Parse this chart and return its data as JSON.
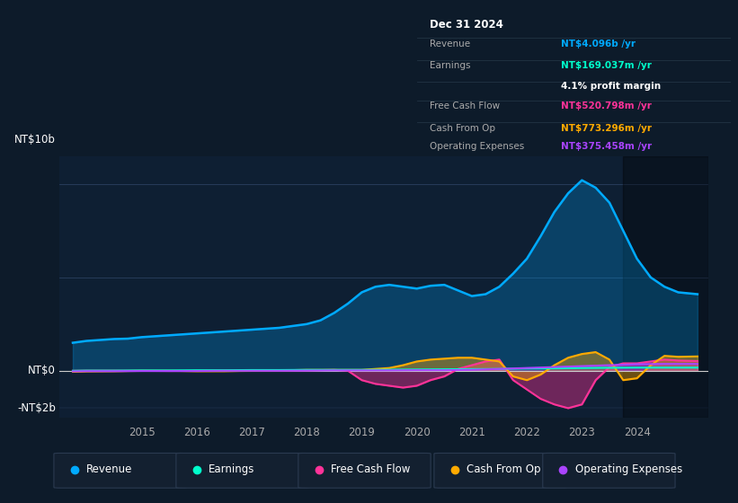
{
  "bg_color": "#0d1b2a",
  "plot_bg_color": "#0e1f33",
  "grid_color": "#1e3a52",
  "ylabel_top": "NT$10b",
  "ylabel_zero": "NT$0",
  "ylabel_neg": "-NT$2b",
  "ylim": [
    -2500000000.0,
    11500000000.0
  ],
  "xmin": 2013.5,
  "xmax": 2025.3,
  "xticks": [
    2015,
    2016,
    2017,
    2018,
    2019,
    2020,
    2021,
    2022,
    2023,
    2024
  ],
  "revenue_color": "#00aaff",
  "earnings_color": "#00ffcc",
  "fcf_color": "#ff3399",
  "cashfromop_color": "#ffaa00",
  "opex_color": "#aa44ff",
  "legend_items": [
    {
      "label": "Revenue",
      "color": "#00aaff"
    },
    {
      "label": "Earnings",
      "color": "#00ffcc"
    },
    {
      "label": "Free Cash Flow",
      "color": "#ff3399"
    },
    {
      "label": "Cash From Op",
      "color": "#ffaa00"
    },
    {
      "label": "Operating Expenses",
      "color": "#aa44ff"
    }
  ],
  "info_box": {
    "date": "Dec 31 2024",
    "revenue_label": "Revenue",
    "revenue_value": "NT$4.096b",
    "revenue_color": "#00aaff",
    "earnings_label": "Earnings",
    "earnings_value": "NT$169.037m",
    "earnings_color": "#00ffcc",
    "margin_text": "4.1% profit margin",
    "fcf_label": "Free Cash Flow",
    "fcf_value": "NT$520.798m",
    "fcf_color": "#ff3399",
    "cashop_label": "Cash From Op",
    "cashop_value": "NT$773.296m",
    "cashop_color": "#ffaa00",
    "opex_label": "Operating Expenses",
    "opex_value": "NT$375.458m",
    "opex_color": "#aa44ff"
  },
  "revenue_x": [
    2013.75,
    2014.0,
    2014.25,
    2014.5,
    2014.75,
    2015.0,
    2015.25,
    2015.5,
    2015.75,
    2016.0,
    2016.25,
    2016.5,
    2016.75,
    2017.0,
    2017.25,
    2017.5,
    2017.75,
    2018.0,
    2018.25,
    2018.5,
    2018.75,
    2019.0,
    2019.25,
    2019.5,
    2019.75,
    2020.0,
    2020.25,
    2020.5,
    2020.75,
    2021.0,
    2021.25,
    2021.5,
    2021.75,
    2022.0,
    2022.25,
    2022.5,
    2022.75,
    2023.0,
    2023.25,
    2023.5,
    2023.75,
    2024.0,
    2024.25,
    2024.5,
    2024.75,
    2025.1
  ],
  "revenue_y": [
    1500000000.0,
    1600000000.0,
    1650000000.0,
    1700000000.0,
    1720000000.0,
    1800000000.0,
    1850000000.0,
    1900000000.0,
    1950000000.0,
    2000000000.0,
    2050000000.0,
    2100000000.0,
    2150000000.0,
    2200000000.0,
    2250000000.0,
    2300000000.0,
    2400000000.0,
    2500000000.0,
    2700000000.0,
    3100000000.0,
    3600000000.0,
    4200000000.0,
    4500000000.0,
    4600000000.0,
    4500000000.0,
    4400000000.0,
    4550000000.0,
    4600000000.0,
    4300000000.0,
    4000000000.0,
    4100000000.0,
    4500000000.0,
    5200000000.0,
    6000000000.0,
    7200000000.0,
    8500000000.0,
    9500000000.0,
    10200000000.0,
    9800000000.0,
    9000000000.0,
    7500000000.0,
    6000000000.0,
    5000000000.0,
    4500000000.0,
    4200000000.0,
    4100000000.0
  ],
  "earnings_x": [
    2013.75,
    2014.0,
    2014.5,
    2015.0,
    2015.5,
    2016.0,
    2016.5,
    2017.0,
    2017.5,
    2018.0,
    2018.5,
    2019.0,
    2019.5,
    2020.0,
    2020.5,
    2021.0,
    2021.5,
    2022.0,
    2022.5,
    2023.0,
    2023.5,
    2024.0,
    2024.5,
    2025.1
  ],
  "earnings_y": [
    0.0,
    10000000.0,
    10000000.0,
    20000000.0,
    20000000.0,
    30000000.0,
    30000000.0,
    40000000.0,
    40000000.0,
    50000000.0,
    50000000.0,
    50000000.0,
    60000000.0,
    70000000.0,
    80000000.0,
    90000000.0,
    100000000.0,
    120000000.0,
    130000000.0,
    150000000.0,
    160000000.0,
    170000000.0,
    170000000.0,
    170000000.0
  ],
  "fcf_x": [
    2013.75,
    2014.0,
    2014.5,
    2015.0,
    2015.5,
    2016.0,
    2016.5,
    2017.0,
    2017.5,
    2018.0,
    2018.5,
    2018.75,
    2019.0,
    2019.25,
    2019.5,
    2019.75,
    2020.0,
    2020.25,
    2020.5,
    2020.75,
    2021.0,
    2021.25,
    2021.5,
    2021.75,
    2022.0,
    2022.25,
    2022.5,
    2022.75,
    2023.0,
    2023.25,
    2023.5,
    2023.75,
    2024.0,
    2024.25,
    2024.5,
    2024.75,
    2025.1
  ],
  "fcf_y": [
    0.0,
    10000000.0,
    10000000.0,
    0.0,
    -10000000.0,
    0.0,
    10000000.0,
    0.0,
    10000000.0,
    20000000.0,
    50000000.0,
    0.0,
    -500000000.0,
    -700000000.0,
    -800000000.0,
    -900000000.0,
    -800000000.0,
    -500000000.0,
    -300000000.0,
    100000000.0,
    300000000.0,
    500000000.0,
    600000000.0,
    -500000000.0,
    -1000000000.0,
    -1500000000.0,
    -1800000000.0,
    -2000000000.0,
    -1800000000.0,
    -500000000.0,
    200000000.0,
    400000000.0,
    400000000.0,
    500000000.0,
    600000000.0,
    550000000.0,
    520000000.0
  ],
  "cashop_x": [
    2013.75,
    2014.0,
    2014.5,
    2015.0,
    2015.5,
    2016.0,
    2016.5,
    2017.0,
    2017.5,
    2018.0,
    2018.5,
    2018.75,
    2019.0,
    2019.25,
    2019.5,
    2019.75,
    2020.0,
    2020.25,
    2020.5,
    2020.75,
    2021.0,
    2021.25,
    2021.5,
    2021.75,
    2022.0,
    2022.25,
    2022.5,
    2022.75,
    2023.0,
    2023.25,
    2023.5,
    2023.75,
    2024.0,
    2024.25,
    2024.5,
    2024.75,
    2025.1
  ],
  "cashop_y": [
    -50000000.0,
    -30000000.0,
    -20000000.0,
    0.0,
    0.0,
    -20000000.0,
    -20000000.0,
    0.0,
    20000000.0,
    50000000.0,
    50000000.0,
    50000000.0,
    50000000.0,
    100000000.0,
    150000000.0,
    300000000.0,
    500000000.0,
    600000000.0,
    650000000.0,
    700000000.0,
    700000000.0,
    600000000.0,
    500000000.0,
    -300000000.0,
    -500000000.0,
    -200000000.0,
    300000000.0,
    700000000.0,
    900000000.0,
    1000000000.0,
    600000000.0,
    -500000000.0,
    -400000000.0,
    300000000.0,
    800000000.0,
    750000000.0,
    770000000.0
  ],
  "opex_x": [
    2013.75,
    2014.0,
    2014.5,
    2015.0,
    2015.5,
    2016.0,
    2016.5,
    2017.0,
    2017.5,
    2018.0,
    2018.5,
    2019.0,
    2019.5,
    2020.0,
    2020.5,
    2021.0,
    2021.5,
    2022.0,
    2022.5,
    2023.0,
    2023.5,
    2024.0,
    2024.5,
    2025.1
  ],
  "opex_y": [
    -30000000.0,
    -20000000.0,
    -20000000.0,
    -10000000.0,
    -10000000.0,
    -10000000.0,
    0.0,
    0.0,
    0.0,
    10000000.0,
    20000000.0,
    20000000.0,
    20000000.0,
    30000000.0,
    30000000.0,
    50000000.0,
    100000000.0,
    150000000.0,
    200000000.0,
    250000000.0,
    300000000.0,
    350000000.0,
    370000000.0,
    375000000.0
  ]
}
